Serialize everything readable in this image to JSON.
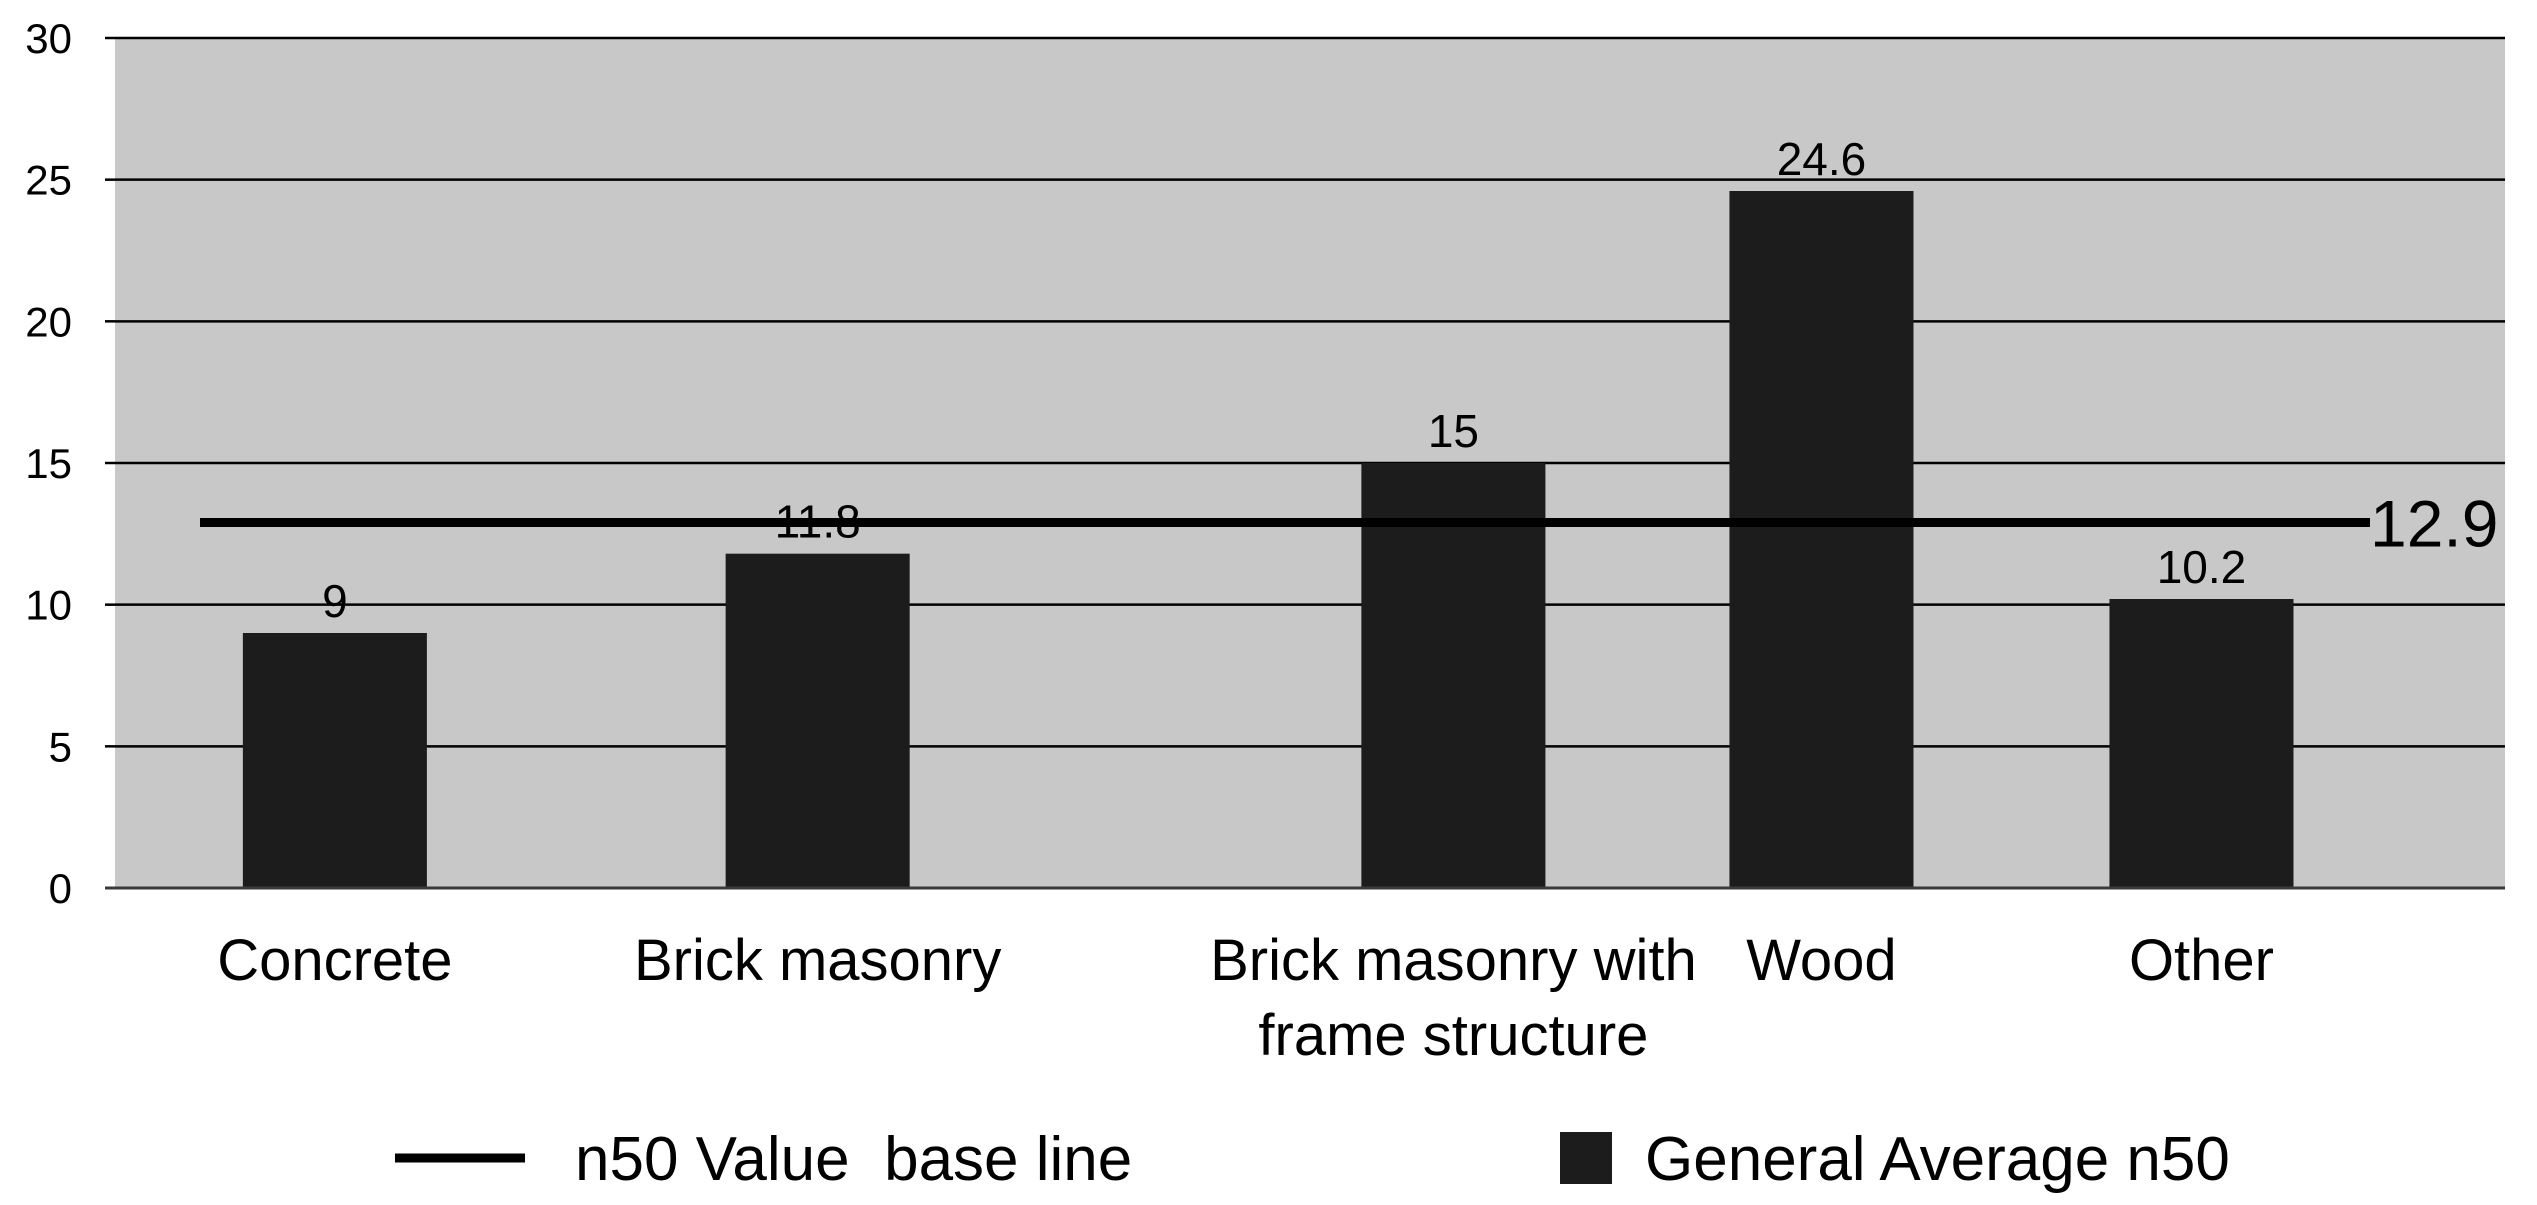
{
  "chart_data": {
    "type": "bar",
    "categories": [
      "Concrete",
      "Brick masonry",
      "Brick masonry with frame structure",
      "Wood",
      "Other"
    ],
    "category_label_lines": [
      [
        "Concrete"
      ],
      [
        "Brick masonry"
      ],
      [
        "Brick masonry with",
        "frame structure"
      ],
      [
        "Wood"
      ],
      [
        "Other"
      ]
    ],
    "series": [
      {
        "name": "General Average n50",
        "values": [
          9,
          11.8,
          15,
          24.6,
          10.2
        ],
        "value_labels": [
          "9",
          "11.8",
          "15",
          "24.6",
          "10.2"
        ],
        "color": "#1c1c1c"
      }
    ],
    "baseline": {
      "name": "n50 Value  base line",
      "value": 12.9,
      "label": "12.9",
      "color": "#000000"
    },
    "ylim": [
      0,
      30
    ],
    "yticks": [
      0,
      5,
      10,
      15,
      20,
      25,
      30
    ],
    "ytick_labels": [
      "0",
      "5",
      "10",
      "15",
      "20",
      "25",
      "30"
    ],
    "grid": true,
    "legend_position": "bottom",
    "plot_background": "#c8c8c8",
    "gridline_color": "#000000",
    "title": "",
    "xlabel": "",
    "ylabel": ""
  }
}
